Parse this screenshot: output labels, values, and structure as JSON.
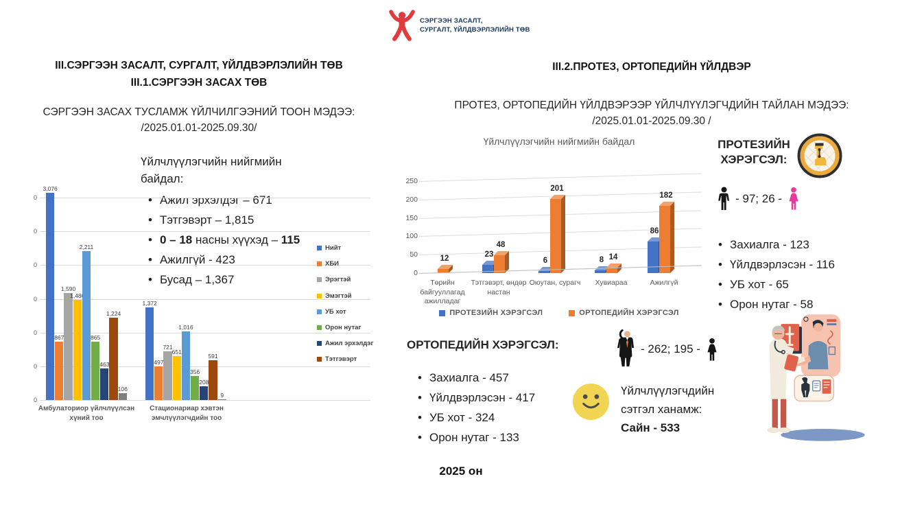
{
  "logo": {
    "line1": "СЭРГЭЭН ЗАСАЛТ,",
    "line2": "СУРГАЛТ, ҮЙЛДВЭРЛЭЛИЙН ТӨВ"
  },
  "left": {
    "title1": "III.СЭРГЭЭН ЗАСАЛТ, СУРГАЛТ, ҮЙЛДВЭРЛЭЛИЙН ТӨВ",
    "title2": "III.1.СЭРГЭЭН ЗАСАХ ТӨВ",
    "subtitle": "СЭРГЭЭН ЗАСАХ ТУСЛАМЖ ҮЙЛЧИЛГЭЭНИЙ ТООН МЭДЭЭ:",
    "period": "/2025.01.01-2025.09.30/",
    "social_heading": "Үйлчлүүлэгчийн нийгмийн байдал:",
    "bullets": [
      [
        {
          "t": "Ажил эрхэлдэг – 671",
          "b": false
        }
      ],
      [
        {
          "t": "Тэтгэвэрт – 1,815",
          "b": false
        }
      ],
      [
        {
          "t": "0 – 18",
          "b": true
        },
        {
          "t": " насны хүүхэд – ",
          "b": false
        },
        {
          "t": "115",
          "b": true
        }
      ],
      [
        {
          "t": "Ажилгүй - 423",
          "b": false
        }
      ],
      [
        {
          "t": "Бусад – 1,367",
          "b": false
        }
      ]
    ]
  },
  "right": {
    "title": "III.2.ПРОТЕЗ, ОРТОПЕДИЙН ҮЙЛДВЭР",
    "subtitle": "ПРОТЕЗ, ОРТОПЕДИЙН ҮЙЛДВЭРЭЭР ҮЙЛЧЛҮҮЛЭГЧДИЙН ТАЙЛАН МЭДЭЭ:",
    "period": "/2025.01.01-2025.09.30 /"
  },
  "protez": {
    "heading": "ПРОТЕЗИЙН ХЭРЭГСЭЛ:",
    "gender_stats": "- 97; 26 -",
    "bullets": [
      "Захиалга - 123",
      "Үйлдвэрлэсэн - 116",
      "УБ хот - 65",
      "Орон нутаг - 58"
    ]
  },
  "ortoped": {
    "heading": "ОРТОПЕДИЙН ХЭРЭГСЭЛ:",
    "gender_stats": "- 262; 195 -",
    "bullets": [
      "Захиалга - 457",
      "Үйлдвэрлэсэн - 417",
      "УБ хот - 324",
      "Орон нутаг - 133"
    ]
  },
  "satisfaction": {
    "line1": "Үйлчлүүлэгчдийн",
    "line2": "сэтгэл ханамж:",
    "bold_line": "Сайн - 533"
  },
  "footer": {
    "year": "2025 он"
  },
  "colors": {
    "logo_red": "#E03C3F",
    "logo_text_blue": "#17375E",
    "female_pink": "#E63A9E",
    "smiley_yellow": "#F0D452",
    "badge_ring_amber": "#ECA93C",
    "gridline_gray": "#DADADA",
    "axis_text_gray": "#595959"
  },
  "chart_data": [
    {
      "type": "bar",
      "title": "",
      "categories": [
        "Амбулаториор үйлчлүүлсэн хүний тоо",
        "Стационариар хэвтэн эмчлүүлэгчдийн тоо"
      ],
      "series": [
        {
          "name": "Нийт",
          "color": "#4472C4",
          "values": [
            3076,
            1372
          ],
          "labels": [
            "3,076",
            "1,372"
          ],
          "in_legend": true
        },
        {
          "name": "ХБИ",
          "color": "#ED7D31",
          "values": [
            867,
            497
          ],
          "labels": [
            "867",
            "497"
          ],
          "in_legend": true
        },
        {
          "name": "Эрэгтэй",
          "color": "#A5A5A5",
          "values": [
            1590,
            721
          ],
          "labels": [
            "1,590",
            "721"
          ],
          "in_legend": true
        },
        {
          "name": "Эмэгтэй",
          "color": "#FFC000",
          "values": [
            1486,
            651
          ],
          "labels": [
            "1,486",
            "651"
          ],
          "in_legend": true
        },
        {
          "name": "УБ хот",
          "color": "#5B9BD5",
          "values": [
            2211,
            1016
          ],
          "labels": [
            "2,211",
            "1,016"
          ],
          "in_legend": true
        },
        {
          "name": "Орон нутаг",
          "color": "#70AD47",
          "values": [
            865,
            356
          ],
          "labels": [
            "865",
            "356"
          ],
          "in_legend": true
        },
        {
          "name": "Ажил эрхэлдэг",
          "color": "#264478",
          "values": [
            463,
            208
          ],
          "labels": [
            "463",
            "208"
          ],
          "in_legend": true
        },
        {
          "name": "Тэтгэвэрт",
          "color": "#9E480E",
          "values": [
            1224,
            591
          ],
          "labels": [
            "1,224",
            "591"
          ],
          "in_legend": true
        },
        {
          "name": "",
          "color": "#7F7F7F",
          "values": [
            106,
            9
          ],
          "labels": [
            "106",
            "9"
          ],
          "in_legend": false
        }
      ],
      "ylim": [
        0,
        3000
      ],
      "gridline_step": 500,
      "ytick_visible_text": "0",
      "legend_position": "right",
      "grid": true
    },
    {
      "type": "bar",
      "style": "3d-column",
      "title": "Үйлчлүүлэгчийн нийгмийн байдал",
      "categories": [
        "Төрийн байгууллагад ажилладаг",
        "Тэтгэвэрт, өндөр настан",
        "Оюутан, сурагч",
        "Хувиараа",
        "Ажилгүй"
      ],
      "series": [
        {
          "name": "ПРОТЕЗИЙН ХЭРЭГСЭЛ",
          "color": "#4472C4",
          "values": [
            0,
            23,
            6,
            8,
            86
          ]
        },
        {
          "name": "ОРТОПЕДИЙН ХЭРЭГСЭЛ",
          "color": "#ED7D31",
          "values": [
            12,
            48,
            201,
            14,
            182
          ]
        }
      ],
      "yticks": [
        0,
        50,
        100,
        150,
        200,
        250
      ],
      "ylim": [
        0,
        250
      ],
      "legend_position": "bottom",
      "grid": true
    }
  ]
}
